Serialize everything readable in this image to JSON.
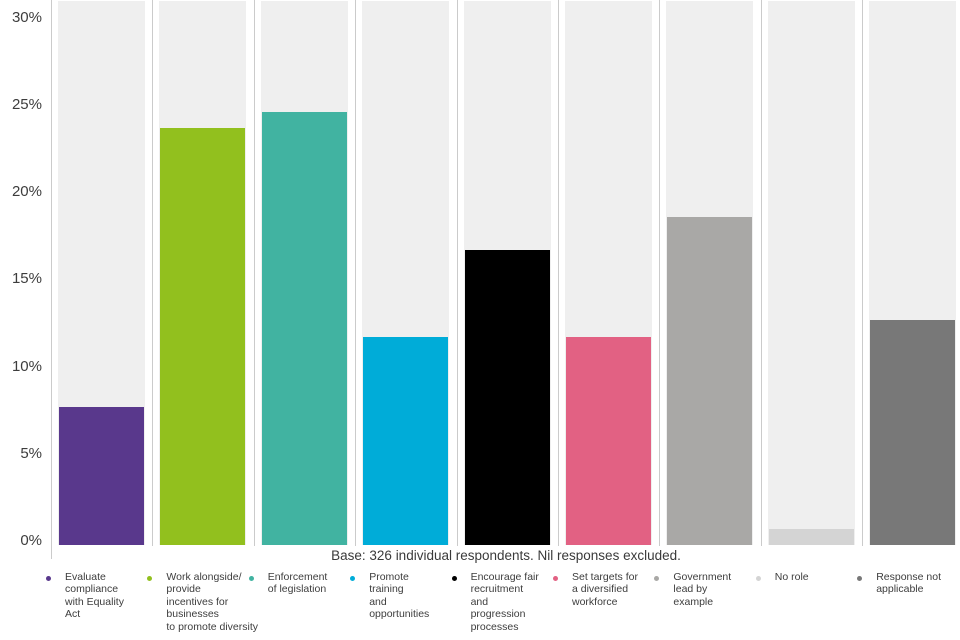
{
  "chart_data": {
    "type": "bar",
    "title": "",
    "xlabel": "",
    "ylabel": "",
    "ylim": [
      0,
      31.2
    ],
    "grid": "off",
    "legend_position": "bottom",
    "categories": [
      [
        "Evaluate",
        "compliance",
        "with Equality",
        "Act"
      ],
      [
        "Work alongside/",
        "provide",
        "incentives for",
        "businesses",
        "to promote diversity"
      ],
      [
        "Enforcement",
        "of legislation"
      ],
      [
        "Promote",
        "training",
        "and",
        "opportunities"
      ],
      [
        "Encourage fair",
        "recruitment",
        "and",
        "progression",
        "processes"
      ],
      [
        "Set targets for",
        "a diversified",
        "workforce"
      ],
      [
        "Government",
        "lead by",
        "example"
      ],
      [
        "No role"
      ],
      [
        "Response not",
        "applicable"
      ]
    ],
    "values": [
      7.9,
      23.9,
      24.8,
      11.9,
      16.9,
      11.9,
      18.8,
      0.9,
      12.9
    ],
    "colors": [
      "#59388c",
      "#92c01e",
      "#41b3a1",
      "#00acd8",
      "#000000",
      "#e26183",
      "#a9a8a6",
      "#d4d4d4",
      "#787878"
    ],
    "yticks": [
      {
        "value": 0,
        "label": "0%"
      },
      {
        "value": 5,
        "label": "5%"
      },
      {
        "value": 10,
        "label": "10%"
      },
      {
        "value": 15,
        "label": "15%"
      },
      {
        "value": 20,
        "label": "20%"
      },
      {
        "value": 25,
        "label": "25%"
      },
      {
        "value": 30,
        "label": "30%"
      }
    ],
    "note": "Base: 326 individual respondents. Nil responses excluded."
  },
  "styles": {
    "track_color": "#efefef",
    "separator_line_color": "#cbcbcb",
    "text_color": "#3d3d3d",
    "background_color": "#ffffff"
  }
}
